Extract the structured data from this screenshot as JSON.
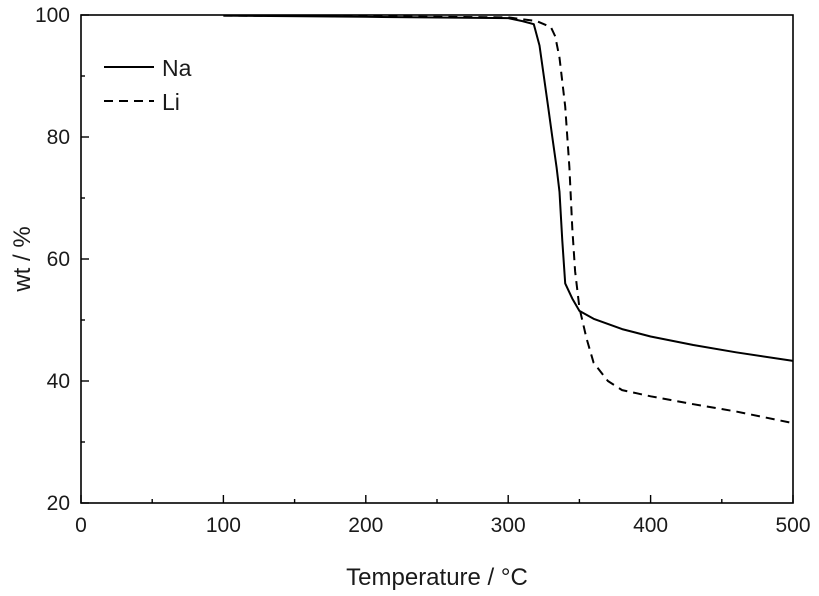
{
  "chart_data": {
    "type": "line",
    "xlabel": "Temperature / °C",
    "ylabel": "wt / %",
    "xlim": [
      0,
      500
    ],
    "ylim": [
      20,
      100
    ],
    "xticks": [
      "0",
      "100",
      "200",
      "300",
      "400",
      "500"
    ],
    "yticks": [
      "20",
      "40",
      "60",
      "80",
      "100"
    ],
    "grid": false,
    "legend_position": "top-left",
    "series": [
      {
        "name": "Na",
        "style": "solid",
        "color": "#000000",
        "x": [
          100,
          200,
          300,
          310,
          318,
          322,
          325,
          328,
          331,
          334,
          336,
          338,
          340,
          345,
          350,
          360,
          380,
          400,
          430,
          460,
          500
        ],
        "y": [
          99.9,
          99.7,
          99.5,
          99.0,
          98.5,
          95.0,
          90.0,
          85.0,
          80.0,
          75.0,
          71.0,
          63.0,
          56.0,
          53.5,
          51.5,
          50.2,
          48.5,
          47.3,
          45.9,
          44.7,
          43.3
        ]
      },
      {
        "name": "Li",
        "style": "dashed",
        "color": "#000000",
        "x": [
          100,
          200,
          300,
          320,
          330,
          333,
          336,
          340,
          343,
          345,
          347,
          350,
          355,
          360,
          370,
          380,
          400,
          430,
          460,
          500
        ],
        "y": [
          99.9,
          99.8,
          99.6,
          99.0,
          98.0,
          96.5,
          93.0,
          85.0,
          75.0,
          65.0,
          58.0,
          52.0,
          47.0,
          43.0,
          40.0,
          38.5,
          37.5,
          36.2,
          35.0,
          33.1
        ]
      }
    ]
  }
}
